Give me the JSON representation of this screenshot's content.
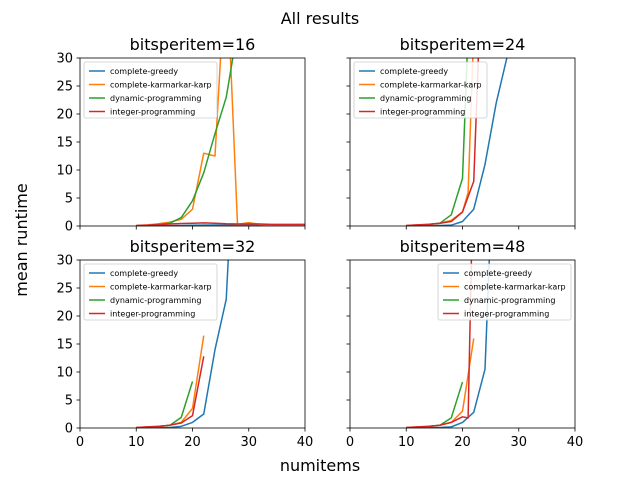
{
  "title": "All results",
  "xlabel": "numitems",
  "ylabel": "mean runtime",
  "colors": {
    "complete-greedy": "#1f77b4",
    "complete-karmarkar-karp": "#ff7f0e",
    "dynamic-programming": "#2ca02c",
    "integer-programming": "#d62728"
  },
  "chart_data": [
    {
      "type": "line",
      "title": "bitsperitem=16",
      "xlim": [
        0,
        40
      ],
      "ylim": [
        0,
        30
      ],
      "xticks": [
        0,
        10,
        20,
        30,
        40
      ],
      "yticks": [
        0,
        5,
        10,
        15,
        20,
        25,
        30
      ],
      "show_xticklabels": false,
      "show_yticklabels": true,
      "legend": "top-left",
      "series": [
        {
          "name": "complete-greedy",
          "x": [
            10,
            12,
            14,
            16,
            18,
            20,
            22,
            24,
            26,
            28,
            30,
            32,
            34,
            36,
            38,
            40
          ],
          "y": [
            0.02,
            0.03,
            0.05,
            0.07,
            0.1,
            0.13,
            0.15,
            0.17,
            0.18,
            0.2,
            0.2,
            0.21,
            0.22,
            0.22,
            0.23,
            0.24
          ]
        },
        {
          "name": "complete-karmarkar-karp",
          "x": [
            10,
            12,
            14,
            16,
            18,
            20,
            22,
            24,
            26,
            28,
            30,
            32,
            34,
            36,
            38,
            40
          ],
          "y": [
            0.1,
            0.2,
            0.4,
            0.7,
            1.2,
            3.0,
            13.0,
            12.5,
            48,
            0.3,
            0.6,
            0.3,
            0.2,
            0.2,
            0.2,
            0.2
          ]
        },
        {
          "name": "dynamic-programming",
          "x": [
            10,
            12,
            14,
            16,
            18,
            20,
            22,
            24,
            26,
            28
          ],
          "y": [
            0.05,
            0.1,
            0.3,
            0.5,
            1.5,
            4.5,
            9.5,
            16.5,
            23,
            35
          ]
        },
        {
          "name": "integer-programming",
          "x": [
            10,
            12,
            14,
            16,
            18,
            20,
            22,
            24,
            26,
            28,
            30,
            32,
            34,
            36,
            38,
            40
          ],
          "y": [
            0.1,
            0.15,
            0.25,
            0.35,
            0.45,
            0.5,
            0.55,
            0.5,
            0.4,
            0.35,
            0.35,
            0.35,
            0.3,
            0.3,
            0.3,
            0.3
          ]
        }
      ]
    },
    {
      "type": "line",
      "title": "bitsperitem=24",
      "xlim": [
        0,
        40
      ],
      "ylim": [
        0,
        30
      ],
      "xticks": [
        0,
        10,
        20,
        30,
        40
      ],
      "yticks": [
        0,
        5,
        10,
        15,
        20,
        25,
        30
      ],
      "show_xticklabels": false,
      "show_yticklabels": false,
      "legend": "top-left",
      "series": [
        {
          "name": "complete-greedy",
          "x": [
            10,
            12,
            14,
            16,
            18,
            20,
            22,
            24,
            26,
            28
          ],
          "y": [
            0.02,
            0.03,
            0.05,
            0.08,
            0.15,
            0.8,
            3.0,
            11,
            22,
            30.5
          ]
        },
        {
          "name": "complete-karmarkar-karp",
          "x": [
            10,
            12,
            14,
            16,
            18,
            20,
            21,
            22
          ],
          "y": [
            0.1,
            0.2,
            0.3,
            0.5,
            1.0,
            2.5,
            6,
            35
          ]
        },
        {
          "name": "dynamic-programming",
          "x": [
            10,
            12,
            14,
            16,
            18,
            20,
            21
          ],
          "y": [
            0.05,
            0.1,
            0.3,
            0.5,
            2.0,
            8.5,
            35
          ]
        },
        {
          "name": "integer-programming",
          "x": [
            10,
            12,
            14,
            16,
            18,
            20,
            22,
            23
          ],
          "y": [
            0.1,
            0.2,
            0.3,
            0.5,
            0.8,
            2.5,
            8,
            35
          ]
        }
      ]
    },
    {
      "type": "line",
      "title": "bitsperitem=32",
      "xlim": [
        0,
        40
      ],
      "ylim": [
        0,
        30
      ],
      "xticks": [
        0,
        10,
        20,
        30,
        40
      ],
      "yticks": [
        0,
        5,
        10,
        15,
        20,
        25,
        30
      ],
      "show_xticklabels": true,
      "show_yticklabels": true,
      "legend": "top-left",
      "series": [
        {
          "name": "complete-greedy",
          "x": [
            10,
            12,
            14,
            16,
            18,
            20,
            22,
            24,
            26,
            26.4
          ],
          "y": [
            0.02,
            0.03,
            0.05,
            0.08,
            0.3,
            1.0,
            2.5,
            14,
            23,
            31
          ]
        },
        {
          "name": "complete-karmarkar-karp",
          "x": [
            10,
            12,
            14,
            16,
            18,
            20,
            22
          ],
          "y": [
            0.1,
            0.2,
            0.3,
            0.5,
            1.0,
            3.5,
            16.5
          ]
        },
        {
          "name": "dynamic-programming",
          "x": [
            10,
            12,
            14,
            16,
            18,
            20
          ],
          "y": [
            0.05,
            0.1,
            0.3,
            0.5,
            1.9,
            8.3
          ]
        },
        {
          "name": "integer-programming",
          "x": [
            10,
            12,
            14,
            16,
            18,
            20,
            22
          ],
          "y": [
            0.1,
            0.2,
            0.3,
            0.5,
            0.9,
            2.2,
            12.8
          ]
        }
      ]
    },
    {
      "type": "line",
      "title": "bitsperitem=48",
      "xlim": [
        0,
        40
      ],
      "ylim": [
        0,
        30
      ],
      "xticks": [
        0,
        10,
        20,
        30,
        40
      ],
      "yticks": [
        0,
        5,
        10,
        15,
        20,
        25,
        30
      ],
      "show_xticklabels": true,
      "show_yticklabels": false,
      "legend": "top-right",
      "series": [
        {
          "name": "complete-greedy",
          "x": [
            10,
            12,
            14,
            16,
            18,
            20,
            22,
            24,
            24.8
          ],
          "y": [
            0.02,
            0.03,
            0.05,
            0.08,
            0.2,
            1.0,
            2.8,
            10.5,
            31
          ]
        },
        {
          "name": "complete-karmarkar-karp",
          "x": [
            10,
            12,
            14,
            16,
            18,
            20,
            22
          ],
          "y": [
            0.1,
            0.2,
            0.3,
            0.5,
            1.0,
            3.0,
            16
          ]
        },
        {
          "name": "dynamic-programming",
          "x": [
            10,
            12,
            14,
            16,
            18,
            20
          ],
          "y": [
            0.05,
            0.1,
            0.3,
            0.5,
            1.8,
            8.2
          ]
        },
        {
          "name": "integer-programming",
          "x": [
            10,
            12,
            14,
            16,
            18,
            20,
            21,
            21.6
          ],
          "y": [
            0.1,
            0.2,
            0.3,
            0.5,
            1.0,
            2.0,
            1.8,
            31
          ]
        }
      ]
    }
  ]
}
